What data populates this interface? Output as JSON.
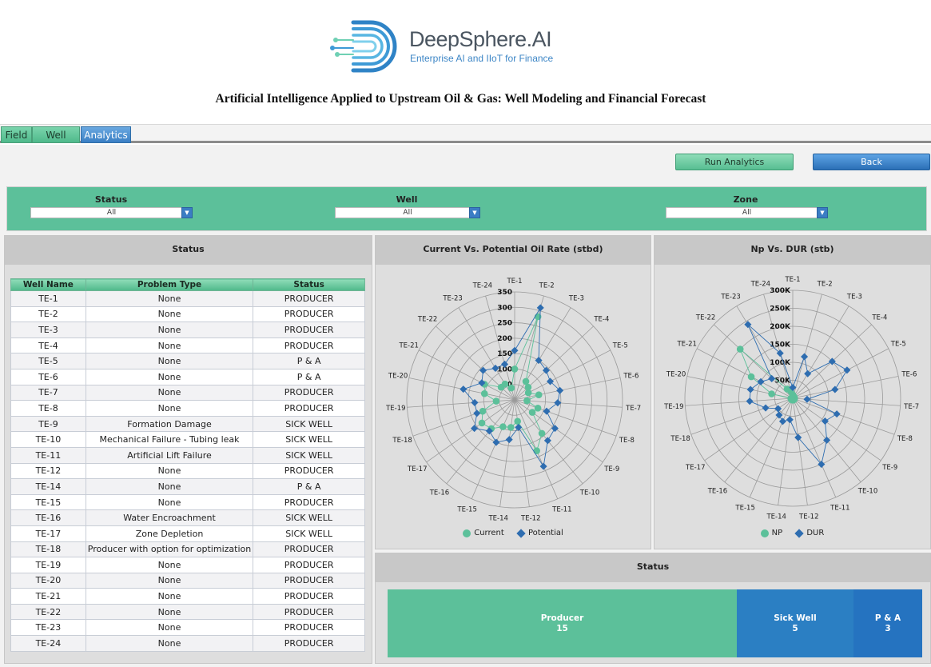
{
  "brand": {
    "name": "DeepSphere.AI",
    "tagline": "Enterprise AI and IIoT for Finance"
  },
  "title": "Artificial Intelligence Applied to Upstream Oil & Gas: Well Modeling and Financial Forecast",
  "tabs": [
    {
      "label": "Field"
    },
    {
      "label": "Well"
    },
    {
      "label": "Analytics"
    }
  ],
  "buttons": {
    "run": "Run Analytics",
    "back": "Back"
  },
  "filters": [
    {
      "label": "Status",
      "value": "All"
    },
    {
      "label": "Well",
      "value": "All"
    },
    {
      "label": "Zone",
      "value": "All"
    }
  ],
  "status_panel": {
    "title": "Status",
    "columns": [
      "Well Name",
      "Problem Type",
      "Status"
    ],
    "rows": [
      [
        "TE-1",
        "None",
        "PRODUCER"
      ],
      [
        "TE-2",
        "None",
        "PRODUCER"
      ],
      [
        "TE-3",
        "None",
        "PRODUCER"
      ],
      [
        "TE-4",
        "None",
        "PRODUCER"
      ],
      [
        "TE-5",
        "None",
        "P & A"
      ],
      [
        "TE-6",
        "None",
        "P & A"
      ],
      [
        "TE-7",
        "None",
        "PRODUCER"
      ],
      [
        "TE-8",
        "None",
        "PRODUCER"
      ],
      [
        "TE-9",
        "Formation Damage",
        "SICK WELL"
      ],
      [
        "TE-10",
        "Mechanical Failure - Tubing leak",
        "SICK WELL"
      ],
      [
        "TE-11",
        "Artificial Lift Failure",
        "SICK WELL"
      ],
      [
        "TE-12",
        "None",
        "PRODUCER"
      ],
      [
        "TE-14",
        "None",
        "P & A"
      ],
      [
        "TE-15",
        "None",
        "PRODUCER"
      ],
      [
        "TE-16",
        "Water Encroachment",
        "SICK WELL"
      ],
      [
        "TE-17",
        "Zone Depletion",
        "SICK WELL"
      ],
      [
        "TE-18",
        "Producer with option for optimization",
        "PRODUCER"
      ],
      [
        "TE-19",
        "None",
        "PRODUCER"
      ],
      [
        "TE-20",
        "None",
        "PRODUCER"
      ],
      [
        "TE-21",
        "None",
        "PRODUCER"
      ],
      [
        "TE-22",
        "None",
        "PRODUCER"
      ],
      [
        "TE-23",
        "None",
        "PRODUCER"
      ],
      [
        "TE-24",
        "None",
        "PRODUCER"
      ]
    ]
  },
  "chart_data": [
    {
      "type": "radar",
      "title": "Current Vs. Potential Oil Rate (stbd)",
      "categories": [
        "TE-1",
        "TE-2",
        "TE-3",
        "TE-4",
        "TE-5",
        "TE-6",
        "TE-7",
        "TE-8",
        "TE-9",
        "TE-10",
        "TE-11",
        "TE-12",
        "TE-14",
        "TE-15",
        "TE-16",
        "TE-17",
        "TE-18",
        "TE-19",
        "TE-20",
        "TE-21",
        "TE-22",
        "TE-23",
        "TE-24"
      ],
      "ticks": [
        "50",
        "100",
        "150",
        "200",
        "250",
        "300",
        "350"
      ],
      "tick_values": [
        50,
        100,
        150,
        200,
        250,
        300,
        350
      ],
      "rmax": 350,
      "series": [
        {
          "name": "Current",
          "color": "#5cc09a",
          "values": [
            100,
            280,
            70,
            60,
            50,
            80,
            40,
            80,
            70,
            140,
            180,
            70,
            90,
            95,
            120,
            130,
            110,
            60,
            100,
            110,
            60,
            60,
            40
          ]
        },
        {
          "name": "Potential",
          "color": "#2e6db0",
          "values": [
            160,
            310,
            150,
            140,
            130,
            150,
            140,
            110,
            160,
            170,
            235,
            90,
            130,
            150,
            130,
            160,
            130,
            130,
            170,
            120,
            140,
            120,
            120
          ]
        }
      ],
      "legend": [
        "Current",
        "Potential"
      ]
    },
    {
      "type": "radar",
      "title": "Np Vs. DUR (stb)",
      "categories": [
        "TE-1",
        "TE-2",
        "TE-3",
        "TE-4",
        "TE-5",
        "TE-6",
        "TE-7",
        "TE-8",
        "TE-9",
        "TE-10",
        "TE-11",
        "TE-12",
        "TE-14",
        "TE-15",
        "TE-16",
        "TE-17",
        "TE-18",
        "TE-19",
        "TE-20",
        "TE-21",
        "TE-22",
        "TE-23",
        "TE-24"
      ],
      "ticks": [
        "50K",
        "100K",
        "150K",
        "200K",
        "250K",
        "300K"
      ],
      "tick_values": [
        50,
        100,
        150,
        200,
        250,
        300
      ],
      "rmax": 300,
      "series": [
        {
          "name": "NP",
          "color": "#5cc09a",
          "values": [
            10,
            5,
            5,
            5,
            5,
            5,
            5,
            5,
            5,
            5,
            5,
            5,
            5,
            5,
            5,
            5,
            5,
            5,
            60,
            130,
            200,
            30,
            20
          ]
        },
        {
          "name": "DUR",
          "color": "#2e6db0",
          "values": [
            30,
            120,
            80,
            150,
            170,
            120,
            40,
            130,
            110,
            150,
            200,
            110,
            60,
            70,
            60,
            50,
            80,
            120,
            120,
            100,
            80,
            240,
            130
          ]
        }
      ],
      "legend": [
        "NP",
        "DUR"
      ]
    },
    {
      "type": "treemap",
      "title": "Status",
      "cells": [
        {
          "label": "Producer",
          "value": 15,
          "color": "#5cc09a"
        },
        {
          "label": "Sick Well",
          "value": 5,
          "color": "#2b7fc3"
        },
        {
          "label": "P & A",
          "value": 3,
          "color": "#2573c0"
        }
      ]
    }
  ]
}
